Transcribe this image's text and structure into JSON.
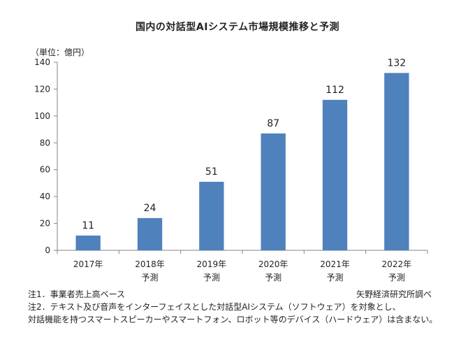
{
  "chart_data": {
    "type": "bar",
    "title": "国内の対話型AIシステム市場規模推移と予測",
    "unit_label": "（単位：億円）",
    "categories": [
      {
        "year": "2017年",
        "sub": ""
      },
      {
        "year": "2018年",
        "sub": "予測"
      },
      {
        "year": "2019年",
        "sub": "予測"
      },
      {
        "year": "2020年",
        "sub": "予測"
      },
      {
        "year": "2021年",
        "sub": "予測"
      },
      {
        "year": "2022年",
        "sub": "予測"
      }
    ],
    "values": [
      11,
      24,
      51,
      87,
      112,
      132
    ],
    "data_labels": [
      "11",
      "24",
      "51",
      "87",
      "112",
      "132"
    ],
    "ylim": [
      0,
      140
    ],
    "yticks": [
      0,
      20,
      40,
      60,
      80,
      100,
      120,
      140
    ],
    "grid": false,
    "colors": {
      "bar": "#4f81bd",
      "axis": "#868686"
    }
  },
  "notes": {
    "note1": "注1．事業者売上高ベース",
    "note2": "注2．テキスト及び音声をインターフェイスとした対話型AIシステム（ソフトウェア）を対象とし、",
    "note3": "対話機能を持つスマートスピーカーやスマートフォン、ロボット等のデバイス（ハードウェア）は含まない。"
  },
  "source": "矢野経済研究所調べ"
}
